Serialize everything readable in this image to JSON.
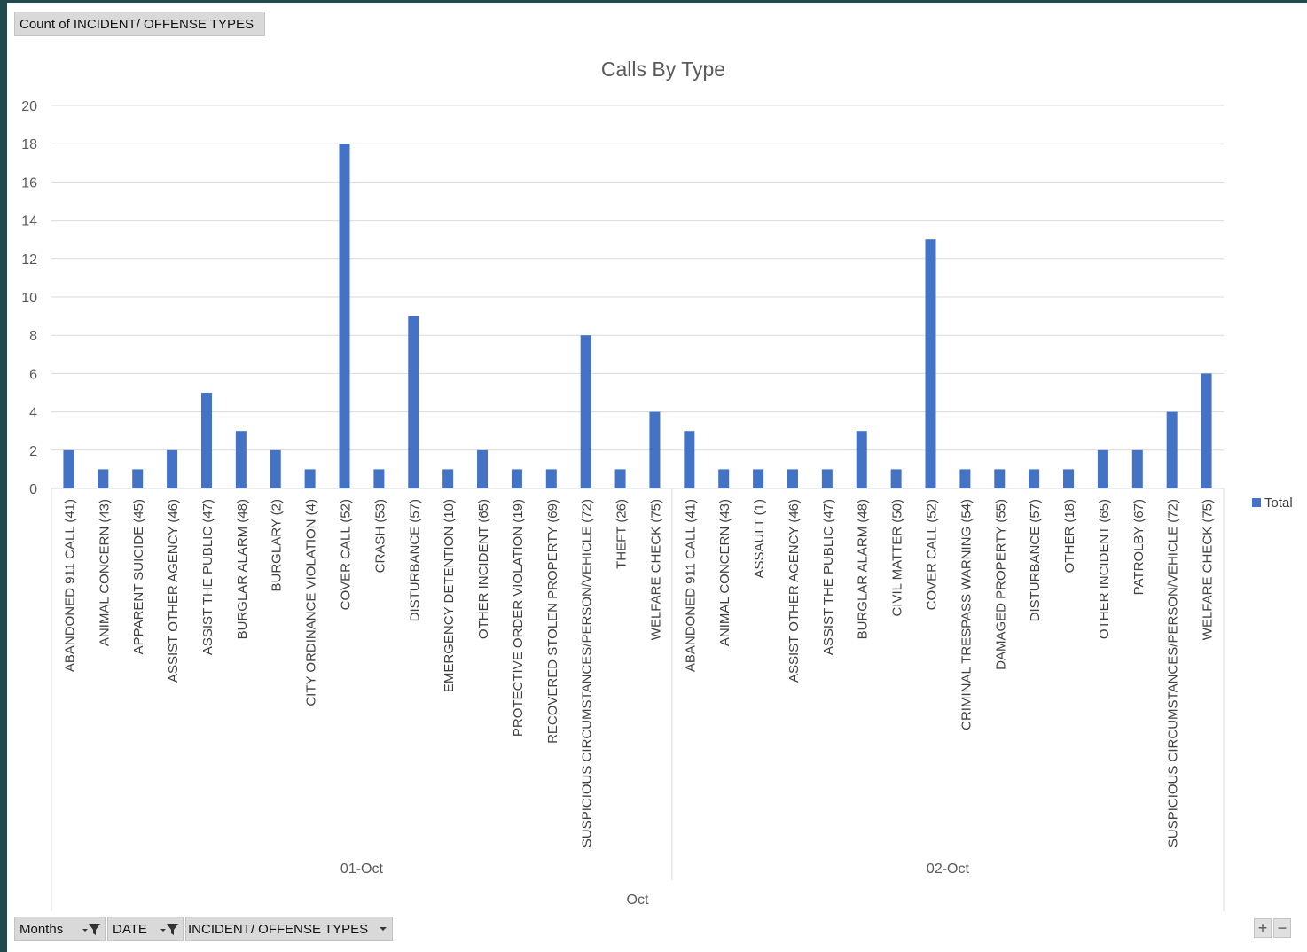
{
  "header": {
    "field_button": "Count of INCIDENT/ OFFENSE TYPES"
  },
  "footer": {
    "months_button": "Months",
    "date_button": "DATE",
    "types_button": "INCIDENT/ OFFENSE TYPES",
    "zoom_in": "+",
    "zoom_out": "−"
  },
  "colors": {
    "bar": "#4472c4",
    "grid": "#d9d9d9",
    "axis_text": "#595959",
    "background": "#1f4b4f"
  },
  "icons": {
    "filter": "filter-icon",
    "dropdown": "dropdown-arrow-icon"
  },
  "chart_data": {
    "type": "bar",
    "title": "Calls By Type",
    "ylim": [
      0,
      20
    ],
    "yticks": [
      0,
      2,
      4,
      6,
      8,
      10,
      12,
      14,
      16,
      18,
      20
    ],
    "grid": true,
    "legend_position": "right",
    "series": [
      {
        "name": "Total"
      }
    ],
    "month": "Oct",
    "groups": [
      {
        "date": "01-Oct",
        "categories": [
          "ABANDONED 911 CALL (41)",
          "ANIMAL CONCERN (43)",
          "APPARENT SUICIDE (45)",
          "ASSIST OTHER AGENCY (46)",
          "ASSIST THE PUBLIC (47)",
          "BURGLAR ALARM (48)",
          "BURGLARY (2)",
          "CITY ORDINANCE VIOLATION (4)",
          "COVER CALL (52)",
          "CRASH (53)",
          "DISTURBANCE (57)",
          "EMERGENCY DETENTION (10)",
          "OTHER INCIDENT (65)",
          "PROTECTIVE ORDER VIOLATION (19)",
          "RECOVERED STOLEN PROPERTY (69)",
          "SUSPICIOUS CIRCUMSTANCES/PERSON/VEHICLE (72)",
          "THEFT (26)",
          "WELFARE CHECK (75)"
        ],
        "values": [
          2,
          1,
          1,
          2,
          5,
          3,
          2,
          1,
          18,
          1,
          9,
          1,
          2,
          1,
          1,
          8,
          1,
          4
        ]
      },
      {
        "date": "02-Oct",
        "categories": [
          "ABANDONED 911 CALL (41)",
          "ANIMAL CONCERN (43)",
          "ASSAULT (1)",
          "ASSIST OTHER AGENCY (46)",
          "ASSIST THE PUBLIC (47)",
          "BURGLAR ALARM (48)",
          "CIVIL MATTER (50)",
          "COVER CALL (52)",
          "CRIMINAL TRESPASS WARNING (54)",
          "DAMAGED PROPERTY (55)",
          "DISTURBANCE (57)",
          "OTHER (18)",
          "OTHER INCIDENT (65)",
          "PATROLBY (67)",
          "SUSPICIOUS CIRCUMSTANCES/PERSON/VEHICLE (72)",
          "WELFARE CHECK (75)"
        ],
        "values": [
          3,
          1,
          1,
          1,
          1,
          3,
          1,
          13,
          1,
          1,
          1,
          1,
          2,
          2,
          4,
          6
        ]
      }
    ]
  }
}
